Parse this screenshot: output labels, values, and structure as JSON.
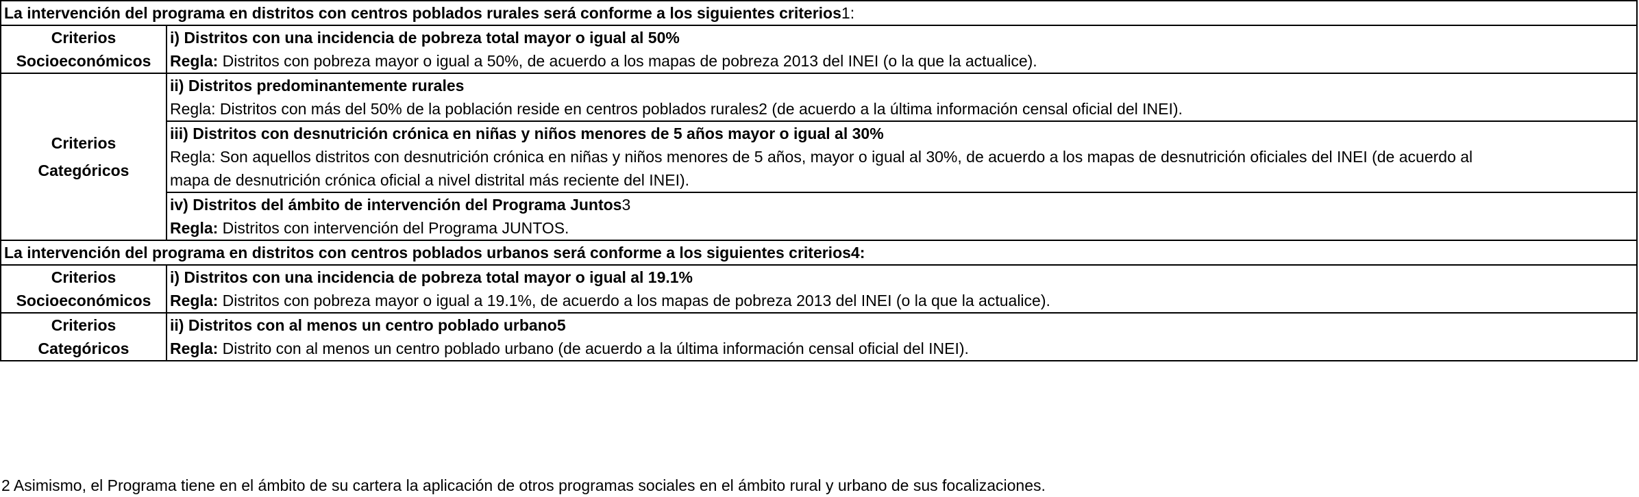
{
  "rural": {
    "header_a": "La intervención del programa en distritos con centros poblados rurales será conforme a los siguientes criterios",
    "header_b": "1:",
    "socio": {
      "label_1": "Criterios",
      "label_2": "Socioeconómicos",
      "crit_i": "i) Distritos con una incidencia de pobreza total mayor o igual al 50%",
      "rule_label": "Regla:",
      "rule_text": " Distritos con pobreza mayor o igual a 50%, de acuerdo a los mapas de pobreza 2013 del INEI (o la que la actualice)."
    },
    "cat": {
      "label_1": "Criterios",
      "label_2": "Categóricos",
      "crit_ii": "ii) Distritos predominantemente rurales",
      "rule_ii": "Regla: Distritos con más del 50% de la población reside en centros poblados rurales2 (de acuerdo a la última información censal oficial del INEI).",
      "crit_iii": "iii) Distritos con desnutrición crónica en niñas y niños menores de 5 años mayor o igual al 30%",
      "rule_iii_line1": "Regla: Son aquellos distritos con desnutrición crónica en niñas y niños menores de 5 años, mayor o igual al 30%, de acuerdo a los mapas de desnutrición oficiales del INEI (de acuerdo al",
      "rule_iii_line2": "mapa de desnutrición crónica oficial a nivel distrital más reciente del INEI).",
      "crit_iv_bold": "iv) Distritos del ámbito de intervención del Programa Juntos",
      "crit_iv_tail": "3",
      "rule_iv_label": "Regla:",
      "rule_iv_text": " Distritos con intervención del Programa JUNTOS."
    }
  },
  "urban": {
    "header_a": "La intervención del programa en distritos con centros poblados urbanos será conforme a los siguientes criterios",
    "header_b": "4:",
    "socio": {
      "label_1": "Criterios",
      "label_2": "Socioeconómicos",
      "crit_i": "i) Distritos con una incidencia de pobreza total mayor o igual al 19.1%",
      "rule_label": "Regla:",
      "rule_text": " Distritos con pobreza mayor o igual a 19.1%, de acuerdo a los mapas de pobreza 2013 del INEI (o la que la actualice)."
    },
    "cat": {
      "label_1": "Criterios",
      "label_2": "Categóricos",
      "crit_ii": "ii) Distritos con al menos un centro poblado urbano5",
      "rule_label": "Regla:",
      "rule_text": " Distrito con al menos un centro poblado urbano (de acuerdo a la última información censal oficial del INEI)."
    }
  },
  "footnote": "2 Asimismo, el Programa tiene en el ámbito de su cartera la aplicación de otros programas sociales en el ámbito rural y urbano de sus focalizaciones."
}
